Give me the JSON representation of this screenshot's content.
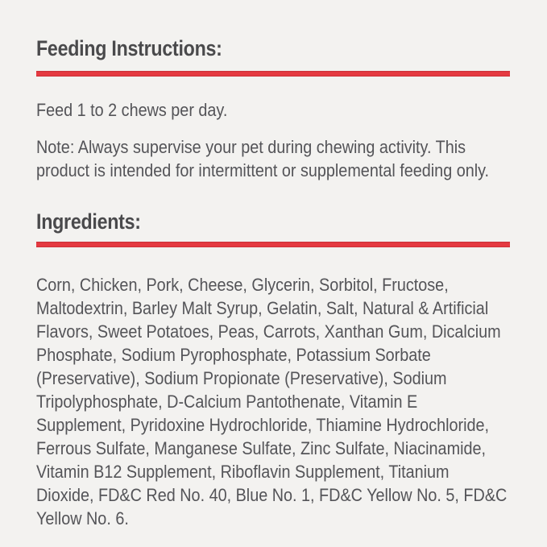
{
  "page": {
    "colors": {
      "background": "#f3f2f0",
      "accent": "#dd353d",
      "heading": "#4a4a4c",
      "body_text": "#545458"
    }
  },
  "sections": {
    "feeding_instructions": {
      "title": "Feeding Instructions:",
      "paragraphs": {
        "feed": "Feed 1 to 2 chews per day.",
        "note": "Note: Always supervise your pet during chewing activity. This product is intended for intermittent or supplemental feeding only."
      }
    },
    "ingredients": {
      "title": "Ingredients:",
      "list_text": "Corn, Chicken, Pork, Cheese, Glycerin, Sorbitol, Fructose, Maltodextrin, Barley Malt Syrup, Gelatin, Salt, Natural & Artificial Flavors, Sweet Potatoes, Peas, Carrots, Xanthan Gum, Dicalcium Phosphate, Sodium Pyrophosphate, Potassium Sorbate (Preservative), Sodium Propionate (Preservative), Sodium Tripolyphosphate, D-Calcium Pantothenate, Vitamin E Supplement, Pyridoxine Hydrochloride, Thiamine Hydrochloride, Ferrous Sulfate, Manganese Sulfate, Zinc Sulfate, Niacinamide, Vitamin B12 Supplement, Riboflavin Supplement, Titanium Dioxide, FD&C Red No. 40, Blue No. 1, FD&C Yellow No. 5, FD&C Yellow No. 6."
    }
  }
}
